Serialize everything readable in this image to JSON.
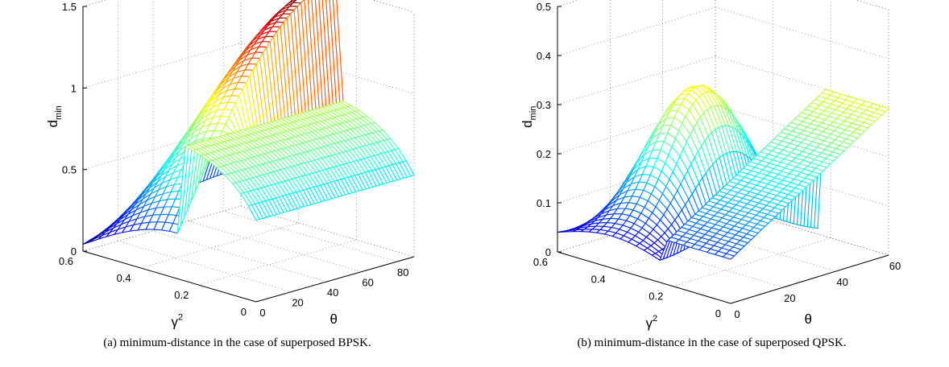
{
  "chart_data": [
    {
      "type": "surface",
      "caption": "(a) minimum-distance in the case of superposed BPSK.",
      "xlabel": "θ",
      "ylabel_base": "γ",
      "ylabel_sup": "2",
      "zlabel_base": "d",
      "zlabel_sub": "min",
      "theta_ticks": [
        "0",
        "20",
        "40",
        "60",
        "80"
      ],
      "gamma_ticks": [
        "0",
        "0.2",
        "0.4",
        "0.6"
      ],
      "z_ticks": [
        "0",
        "0.5",
        "1",
        "1.5"
      ],
      "theta_range": [
        0,
        90
      ],
      "gamma_range": [
        0,
        0.6
      ],
      "z_range": [
        0,
        1.5
      ],
      "grid": true,
      "colormap": "jet"
    },
    {
      "type": "surface",
      "caption": "(b) minimum-distance in the case of superposed QPSK.",
      "xlabel": "θ",
      "ylabel_base": "γ",
      "ylabel_sup": "2",
      "zlabel_base": "d",
      "zlabel_sub": "min",
      "theta_ticks": [
        "0",
        "20",
        "40",
        "60"
      ],
      "gamma_ticks": [
        "0",
        "0.2",
        "0.4",
        "0.6"
      ],
      "z_ticks": [
        "0",
        "0.1",
        "0.2",
        "0.3",
        "0.4",
        "0.5"
      ],
      "theta_range": [
        0,
        60
      ],
      "gamma_range": [
        0,
        0.6
      ],
      "z_range": [
        0,
        0.5
      ],
      "grid": true,
      "colormap": "jet"
    }
  ]
}
